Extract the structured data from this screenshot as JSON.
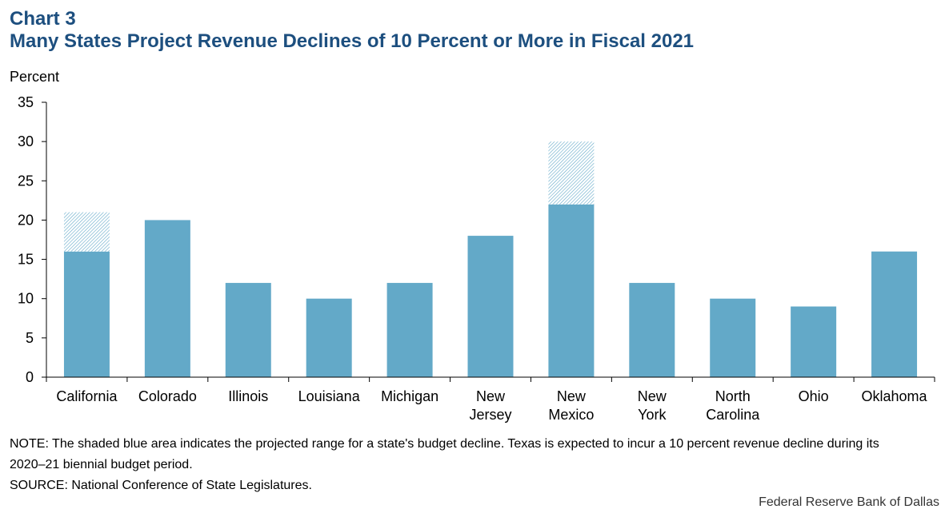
{
  "header": {
    "chart_number": "Chart 3",
    "title": "Many States Project Revenue Declines of 10 Percent or More in Fiscal 2021"
  },
  "chart_data": {
    "type": "bar",
    "title": "Many States Project Revenue Declines of 10 Percent or More in Fiscal 2021",
    "ylabel": "Percent",
    "xlabel": "",
    "ylim": [
      0,
      35
    ],
    "yticks": [
      0,
      5,
      10,
      15,
      20,
      25,
      30,
      35
    ],
    "categories": [
      [
        "California"
      ],
      [
        "Colorado"
      ],
      [
        "Illinois"
      ],
      [
        "Louisiana"
      ],
      [
        "Michigan"
      ],
      [
        "New",
        "Jersey"
      ],
      [
        "New",
        "Mexico"
      ],
      [
        "New",
        "York"
      ],
      [
        "North",
        "Carolina"
      ],
      [
        "Ohio"
      ],
      [
        "Oklahoma"
      ]
    ],
    "series": [
      {
        "values": [
          16,
          20,
          12,
          10,
          12,
          18,
          22,
          12,
          10,
          9,
          16
        ]
      },
      {
        "values": [
          5,
          0,
          0,
          0,
          0,
          0,
          8,
          0,
          0,
          0,
          0
        ]
      }
    ],
    "stacked": true,
    "grid": false,
    "legend": "none",
    "colors": {
      "bar": "#63a9c8",
      "range_stripe": "#63a9c8",
      "axis": "#000000",
      "title": "#1d4f7f"
    }
  },
  "notes": {
    "note": "NOTE: The shaded blue area indicates the projected range for a state's budget decline. Texas is expected to incur a 10 percent revenue decline during its 2020–21 biennial budget period.",
    "source": "SOURCE: National Conference of State Legislatures."
  },
  "credit": "Federal Reserve Bank of Dallas"
}
